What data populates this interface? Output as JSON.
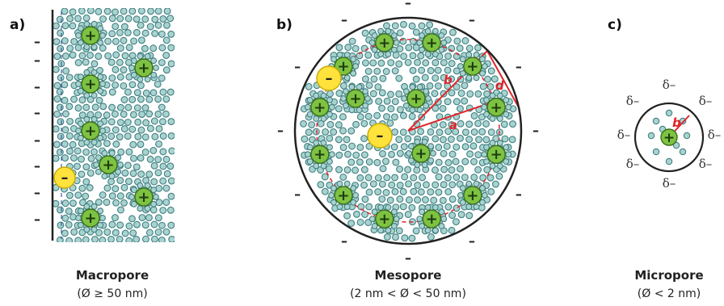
{
  "panels": {
    "a": {
      "letter": "a)",
      "title": "Macropore",
      "subtitle": "(Ø ≥ 50 nm)"
    },
    "b": {
      "letter": "b)",
      "title": "Mesopore",
      "subtitle": "(2 nm < Ø < 50 nm)"
    },
    "c": {
      "letter": "c)",
      "title": "Micropore",
      "subtitle": "(Ø < 2 nm)"
    }
  },
  "symbols": {
    "negative": "–",
    "positive": "+",
    "partial_negative": "δ–"
  },
  "dimensions": {
    "a": "a",
    "b": "b",
    "d": "d"
  },
  "colors": {
    "cation_fill": "#7ec242",
    "cation_stroke": "#3c6e1a",
    "anion_fill": "#ffe23c",
    "anion_stroke": "#c9a800",
    "solvent_fill": "#a9d3d0",
    "solvent_stroke": "#3f7f80",
    "dimension_red": "#e0262b",
    "electrode_line": "#1f3f8f"
  }
}
